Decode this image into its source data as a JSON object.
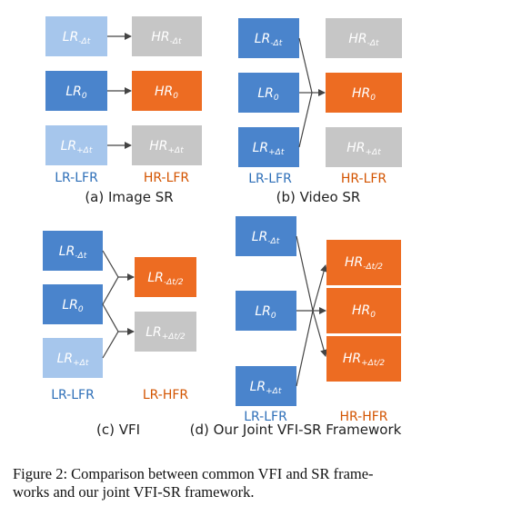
{
  "colors": {
    "lr_dark": "#4A84CC",
    "lr_light": "#A6C6EC",
    "hr_orange": "#ED6C22",
    "gray": "#C6C6C6",
    "text_blue": "#2E6FB8",
    "text_orange": "#D35400"
  },
  "boxes": {
    "lr_minus": {
      "main": "LR",
      "sub": "-Δt"
    },
    "lr_zero": {
      "main": "LR",
      "sub": "0"
    },
    "lr_plus": {
      "main": "LR",
      "sub": "+Δt"
    },
    "hr_minus": {
      "main": "HR",
      "sub": "-Δt"
    },
    "hr_zero": {
      "main": "HR",
      "sub": "0"
    },
    "hr_plus": {
      "main": "HR",
      "sub": "+Δt"
    },
    "lr_minus_half": {
      "main": "LR",
      "sub": "-Δt/2"
    },
    "lr_plus_half": {
      "main": "LR",
      "sub": "+Δt/2"
    },
    "hr_minus_half": {
      "main": "HR",
      "sub": "-Δt/2"
    },
    "hr_plus_half": {
      "main": "HR",
      "sub": "+Δt/2"
    }
  },
  "labels": {
    "lr_lfr": "LR-LFR",
    "hr_lfr": "HR-LFR",
    "lr_hfr": "LR-HFR",
    "hr_hfr": "HR-HFR"
  },
  "captions": {
    "a": "(a) Image SR",
    "b": "(b) Video SR",
    "c": "(c) VFI",
    "d": "(d) Our Joint VFI-SR Framework"
  },
  "figure_caption": {
    "line1": "Figure 2: Comparison between common VFI and SR frame-",
    "line2": "works and our joint VFI-SR framework."
  }
}
